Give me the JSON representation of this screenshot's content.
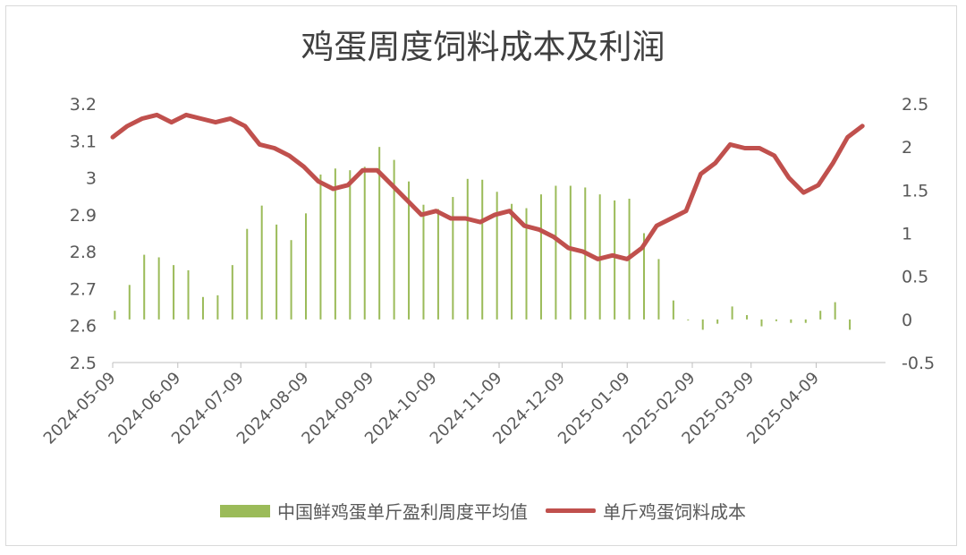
{
  "chart_data": {
    "type": "bar+line",
    "title": "鸡蛋周度饲料成本及利润",
    "x_ticks": [
      "2024-05-09",
      "2024-06-09",
      "2024-07-09",
      "2024-08-09",
      "2024-09-09",
      "2024-10-09",
      "2024-11-09",
      "2024-12-09",
      "2025-01-09",
      "2025-02-09",
      "2025-03-09",
      "2025-04-09"
    ],
    "left_axis": {
      "ticks": [
        "2.5",
        "2.6",
        "2.7",
        "2.8",
        "2.9",
        "3",
        "3.1",
        "3.2"
      ],
      "min": 2.5,
      "max": 3.2
    },
    "right_axis": {
      "ticks": [
        "-0.5",
        "0",
        "0.5",
        "1",
        "1.5",
        "2",
        "2.5"
      ],
      "min": -0.5,
      "max": 2.5
    },
    "series": [
      {
        "name": "中国鲜鸡蛋单斤盈利周度平均值",
        "type": "bar",
        "axis": "right",
        "color": "#9bbb59",
        "x": [
          "2024-05-10",
          "2024-05-17",
          "2024-05-24",
          "2024-05-31",
          "2024-06-07",
          "2024-06-14",
          "2024-06-21",
          "2024-06-28",
          "2024-07-05",
          "2024-07-12",
          "2024-07-19",
          "2024-07-26",
          "2024-08-02",
          "2024-08-09",
          "2024-08-16",
          "2024-08-23",
          "2024-08-30",
          "2024-09-06",
          "2024-09-13",
          "2024-09-20",
          "2024-09-27",
          "2024-10-04",
          "2024-10-11",
          "2024-10-18",
          "2024-10-25",
          "2024-11-01",
          "2024-11-08",
          "2024-11-15",
          "2024-11-22",
          "2024-11-29",
          "2024-12-06",
          "2024-12-13",
          "2024-12-20",
          "2024-12-27",
          "2025-01-03",
          "2025-01-10",
          "2025-01-17",
          "2025-01-24",
          "2025-01-31",
          "2025-02-07",
          "2025-02-14",
          "2025-02-21",
          "2025-02-28",
          "2025-03-07",
          "2025-03-14",
          "2025-03-21",
          "2025-03-28",
          "2025-04-04",
          "2025-04-11",
          "2025-04-18",
          "2025-04-25",
          "2025-05-02"
        ],
        "values": [
          0.1,
          0.4,
          0.75,
          0.72,
          0.63,
          0.57,
          0.26,
          0.28,
          0.63,
          1.05,
          1.32,
          1.1,
          0.92,
          1.23,
          1.68,
          1.75,
          1.73,
          1.77,
          2.0,
          1.85,
          1.6,
          1.33,
          1.28,
          1.42,
          1.63,
          1.62,
          1.48,
          1.34,
          1.29,
          1.45,
          1.55,
          1.55,
          1.53,
          1.45,
          1.38,
          1.4,
          1.0,
          0.7,
          0.22,
          -0.01,
          -0.12,
          -0.05,
          0.15,
          0.05,
          -0.08,
          -0.02,
          -0.04,
          -0.04,
          0.1,
          0.2,
          -0.12,
          null
        ]
      },
      {
        "name": "单斤鸡蛋饲料成本",
        "type": "line",
        "axis": "left",
        "color": "#c0504d",
        "x": [
          "2024-05-09",
          "2024-05-16",
          "2024-05-23",
          "2024-05-30",
          "2024-06-06",
          "2024-06-13",
          "2024-06-20",
          "2024-06-27",
          "2024-07-04",
          "2024-07-11",
          "2024-07-18",
          "2024-07-25",
          "2024-08-01",
          "2024-08-08",
          "2024-08-15",
          "2024-08-22",
          "2024-08-29",
          "2024-09-05",
          "2024-09-12",
          "2024-09-19",
          "2024-09-26",
          "2024-10-03",
          "2024-10-10",
          "2024-10-17",
          "2024-10-24",
          "2024-10-31",
          "2024-11-07",
          "2024-11-14",
          "2024-11-21",
          "2024-11-28",
          "2024-12-05",
          "2024-12-12",
          "2024-12-19",
          "2024-12-26",
          "2025-01-02",
          "2025-01-09",
          "2025-01-16",
          "2025-01-23",
          "2025-01-30",
          "2025-02-06",
          "2025-02-13",
          "2025-02-20",
          "2025-02-27",
          "2025-03-06",
          "2025-03-13",
          "2025-03-20",
          "2025-03-27",
          "2025-04-03",
          "2025-04-10",
          "2025-04-17",
          "2025-04-24",
          "2025-05-01",
          "2025-05-08"
        ],
        "values": [
          3.11,
          3.14,
          3.16,
          3.17,
          3.15,
          3.17,
          3.16,
          3.15,
          3.16,
          3.14,
          3.09,
          3.08,
          3.06,
          3.03,
          2.99,
          2.97,
          2.98,
          3.02,
          3.02,
          2.98,
          2.94,
          2.9,
          2.91,
          2.89,
          2.89,
          2.88,
          2.9,
          2.91,
          2.87,
          2.86,
          2.84,
          2.81,
          2.8,
          2.78,
          2.79,
          2.78,
          2.81,
          2.87,
          2.89,
          2.91,
          3.01,
          3.04,
          3.09,
          3.08,
          3.08,
          3.06,
          3.0,
          2.96,
          2.98,
          3.04,
          3.11,
          3.14,
          null
        ]
      }
    ],
    "legend_position": "bottom",
    "grid": false
  }
}
